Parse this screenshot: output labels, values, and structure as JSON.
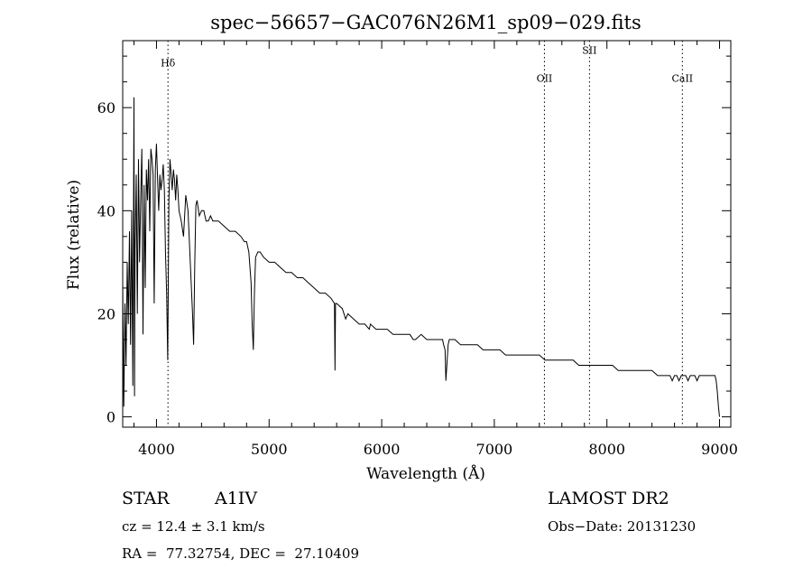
{
  "chart_data": {
    "type": "line",
    "title": "spec−56657−GAC076N26M1_sp09−029.fits",
    "xlabel": "Wavelength (Å)",
    "ylabel": "Flux (relative)",
    "xlim": [
      3700,
      9100
    ],
    "ylim": [
      -2,
      73
    ],
    "x_ticks": [
      4000,
      5000,
      6000,
      7000,
      8000,
      9000
    ],
    "y_ticks": [
      0,
      20,
      40,
      60
    ],
    "grid": false,
    "line_color": "#000000",
    "series": [
      {
        "x": [
          3700,
          3710,
          3720,
          3730,
          3740,
          3750,
          3760,
          3770,
          3780,
          3790,
          3800,
          3805,
          3810,
          3820,
          3830,
          3840,
          3850,
          3860,
          3870,
          3880,
          3890,
          3900,
          3910,
          3920,
          3930,
          3940,
          3950,
          3960,
          3970,
          3980,
          3990,
          4000,
          4010,
          4020,
          4030,
          4040,
          4050,
          4060,
          4070,
          4080,
          4090,
          4100,
          4110,
          4120,
          4130,
          4140,
          4150,
          4160,
          4170,
          4180,
          4190,
          4200,
          4220,
          4240,
          4260,
          4280,
          4300,
          4320,
          4330,
          4340,
          4350,
          4360,
          4380,
          4400,
          4420,
          4440,
          4460,
          4480,
          4500,
          4550,
          4600,
          4650,
          4700,
          4750,
          4780,
          4800,
          4820,
          4840,
          4850,
          4860,
          4870,
          4880,
          4900,
          4920,
          4950,
          5000,
          5050,
          5100,
          5150,
          5200,
          5250,
          5300,
          5350,
          5400,
          5450,
          5500,
          5550,
          5580,
          5585,
          5590,
          5600,
          5650,
          5680,
          5700,
          5750,
          5800,
          5850,
          5890,
          5900,
          5950,
          6000,
          6050,
          6100,
          6150,
          6200,
          6250,
          6280,
          6300,
          6350,
          6400,
          6450,
          6500,
          6540,
          6550,
          6563,
          6570,
          6590,
          6600,
          6650,
          6700,
          6750,
          6800,
          6850,
          6900,
          6950,
          7000,
          7050,
          7100,
          7150,
          7200,
          7250,
          7300,
          7350,
          7400,
          7450,
          7500,
          7550,
          7600,
          7650,
          7700,
          7750,
          7800,
          7850,
          7900,
          7950,
          8000,
          8050,
          8100,
          8150,
          8200,
          8250,
          8300,
          8350,
          8400,
          8450,
          8480,
          8500,
          8520,
          8540,
          8560,
          8580,
          8600,
          8620,
          8640,
          8660,
          8680,
          8700,
          8720,
          8740,
          8760,
          8780,
          8800,
          8820,
          8840,
          8860,
          8880,
          8900,
          8920,
          8940,
          8960,
          8970,
          8980,
          8990,
          9000
        ],
        "values": [
          26,
          2,
          22,
          10,
          30,
          18,
          36,
          14,
          40,
          6,
          62,
          4,
          32,
          47,
          20,
          50,
          30,
          43,
          52,
          16,
          45,
          25,
          48,
          42,
          50,
          36,
          52,
          50,
          47,
          22,
          48,
          53,
          46,
          40,
          47,
          44,
          46,
          49,
          44,
          32,
          24,
          11,
          42,
          50,
          47,
          44,
          48,
          46,
          42,
          47,
          44,
          40,
          38,
          35,
          43,
          40,
          30,
          20,
          14,
          30,
          41,
          42,
          39,
          40,
          40,
          38,
          38,
          39,
          38,
          38,
          37,
          36,
          36,
          35,
          34,
          34,
          32,
          26,
          18,
          13,
          24,
          31,
          32,
          32,
          31,
          30,
          30,
          29,
          28,
          28,
          27,
          27,
          26,
          25,
          24,
          24,
          23,
          22,
          9,
          22,
          22,
          21,
          19,
          20,
          19,
          18,
          18,
          17,
          18,
          17,
          17,
          17,
          16,
          16,
          16,
          16,
          15,
          15,
          16,
          15,
          15,
          15,
          15,
          14,
          13,
          7,
          14,
          15,
          15,
          14,
          14,
          14,
          14,
          13,
          13,
          13,
          13,
          12,
          12,
          12,
          12,
          12,
          12,
          12,
          11,
          11,
          11,
          11,
          11,
          11,
          10,
          10,
          10,
          10,
          10,
          10,
          10,
          9,
          9,
          9,
          9,
          9,
          9,
          9,
          8,
          8,
          8,
          8,
          8,
          8,
          7,
          8,
          8,
          7,
          8,
          8,
          8,
          7,
          8,
          8,
          8,
          7,
          8,
          8,
          8,
          8,
          8,
          8,
          8,
          8,
          7,
          5,
          2,
          0
        ]
      }
    ],
    "line_markers": [
      {
        "label": "Hδ",
        "x": 4102,
        "label_y": 68
      },
      {
        "label": "OII",
        "x": 7445,
        "label_y": 65
      },
      {
        "label": "SII",
        "x": 7845,
        "label_y": 70.5
      },
      {
        "label": "CaII",
        "x": 8670,
        "label_y": 65
      }
    ]
  },
  "info": {
    "object_class": "STAR",
    "subclass": "A1IV",
    "survey": "LAMOST DR2",
    "cz": "cz = 12.4 ± 3.1 km/s",
    "obs_date": "Obs−Date: 20131230",
    "coords": "RA =  77.32754, DEC =  27.10409"
  }
}
